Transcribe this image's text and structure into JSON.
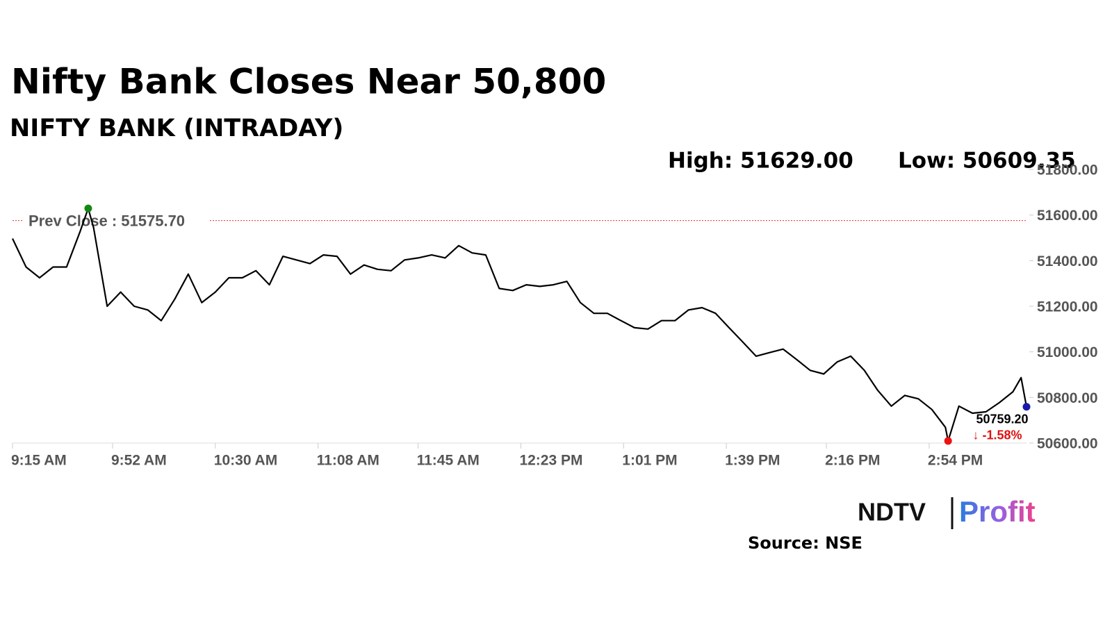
{
  "chart_data": {
    "type": "line",
    "title": "Nifty Bank Closes Near 50,800",
    "subtitle": "NIFTY BANK (INTRADAY)",
    "high_label": "High: 51629.00",
    "low_label": "Low: 50609.35",
    "color": "#000000",
    "x": [
      555,
      560,
      565,
      570,
      575,
      580,
      583,
      585,
      590,
      595,
      600,
      605,
      610,
      615,
      620,
      625,
      630,
      635,
      640,
      645,
      650,
      655,
      660,
      665,
      670,
      675,
      680,
      685,
      690,
      695,
      700,
      705,
      710,
      715,
      720,
      725,
      730,
      735,
      740,
      745,
      750,
      755,
      760,
      765,
      770,
      775,
      780,
      785,
      790,
      795,
      800,
      805,
      810,
      815,
      820,
      825,
      830,
      835,
      840,
      845,
      850,
      855,
      860,
      865,
      870,
      875,
      880,
      885,
      890,
      895,
      900,
      901,
      905,
      910,
      915,
      920,
      925,
      928,
      930
    ],
    "values": [
      51497,
      51372,
      51325,
      51372,
      51372,
      51528,
      51629,
      51544,
      51200,
      51262,
      51200,
      51184,
      51137,
      51231,
      51341,
      51216,
      51262,
      51325,
      51325,
      51356,
      51294,
      51419,
      51403,
      51387,
      51425,
      51419,
      51341,
      51381,
      51362,
      51356,
      51403,
      51412,
      51425,
      51412,
      51466,
      51434,
      51425,
      51278,
      51269,
      51294,
      51287,
      51294,
      51309,
      51216,
      51169,
      51169,
      51137,
      51106,
      51100,
      51137,
      51137,
      51184,
      51194,
      51169,
      51106,
      51044,
      50981,
      50997,
      51012,
      50966,
      50919,
      50903,
      50956,
      50981,
      50919,
      50831,
      50762,
      50809,
      50794,
      50747,
      50669,
      50609.35,
      50762,
      50731,
      50737,
      50778,
      50825,
      50887,
      50759.2
    ],
    "xlim": [
      555,
      930
    ],
    "xticks": [
      {
        "value": 555,
        "label": "9:15 AM"
      },
      {
        "value": 592,
        "label": "9:52 AM"
      },
      {
        "value": 630,
        "label": "10:30 AM"
      },
      {
        "value": 668,
        "label": "11:08 AM"
      },
      {
        "value": 705,
        "label": "11:45 AM"
      },
      {
        "value": 743,
        "label": "12:23 PM"
      },
      {
        "value": 781,
        "label": "1:01 PM"
      },
      {
        "value": 819,
        "label": "1:39 PM"
      },
      {
        "value": 856,
        "label": "2:16 PM"
      },
      {
        "value": 894,
        "label": "2:54 PM"
      }
    ],
    "ylim": [
      50600,
      51800
    ],
    "yticks": [
      {
        "value": 50600,
        "label": "50600.00"
      },
      {
        "value": 50800,
        "label": "50800.00"
      },
      {
        "value": 51000,
        "label": "51000.00"
      },
      {
        "value": 51200,
        "label": "51200.00"
      },
      {
        "value": 51400,
        "label": "51400.00"
      },
      {
        "value": 51600,
        "label": "51600.00"
      },
      {
        "value": 51800,
        "label": "51800.00"
      }
    ],
    "prev_close": {
      "value": 51575.7,
      "label": "Prev Close : 51575.70",
      "color": "#e03030"
    },
    "high_point": {
      "x": 583,
      "y": 51629,
      "color": "#118811"
    },
    "low_point": {
      "x": 901,
      "y": 50609.35,
      "color": "#ee1111"
    },
    "last_point": {
      "x": 930,
      "y": 50759.2,
      "color": "#1a1aaa",
      "label": "50759.20",
      "change_label": "↓ -1.58%"
    },
    "brand": [
      "NDTV",
      "Profit"
    ],
    "source": "Source: NSE"
  }
}
